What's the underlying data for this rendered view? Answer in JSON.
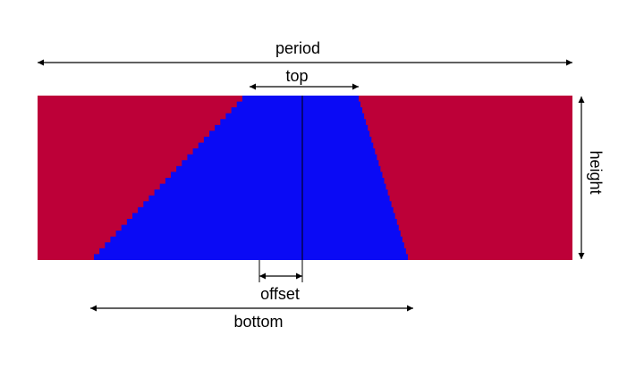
{
  "diagram": {
    "labels": {
      "period": "period",
      "top": "top",
      "height": "height",
      "offset": "offset",
      "bottom": "bottom"
    },
    "colors": {
      "background_material": "#bd0038",
      "grating_material": "#0a0af5",
      "annotation": "#000000",
      "page": "#ffffff"
    }
  }
}
